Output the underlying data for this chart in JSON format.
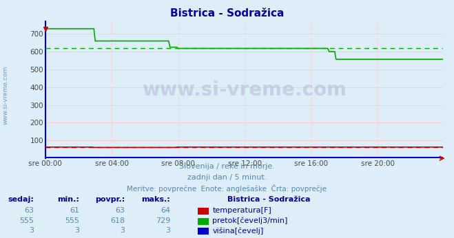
{
  "title": "Bistrica - Sodražica",
  "bg_color": "#ddeef8",
  "plot_bg_color": "#ddeef8",
  "fig_bg_color": "#ddeef8",
  "xlabel_ticks": [
    "sre 00:00",
    "sre 04:00",
    "sre 08:00",
    "sre 12:00",
    "sre 16:00",
    "sre 20:00"
  ],
  "xtick_positions": [
    0,
    48,
    96,
    144,
    192,
    240
  ],
  "ylabel_ticks": [
    100,
    200,
    300,
    400,
    500,
    600,
    700
  ],
  "ylim": [
    0,
    770
  ],
  "xlim": [
    0,
    287
  ],
  "total_points": 288,
  "subtitle1": "Slovenija / reke in morje.",
  "subtitle2": "zadnji dan / 5 minut.",
  "subtitle3": "Meritve: povprečne  Enote: anglešaške  Črta: povprečje",
  "watermark": "www.si-vreme.com",
  "legend_title": "Bistrica - Sodražica",
  "legend_items": [
    {
      "label": "temperatura[F]",
      "color": "#cc0000"
    },
    {
      "label": "pretok[čevelj3/min]",
      "color": "#00aa00"
    },
    {
      "label": "višina[čevelj]",
      "color": "#0000cc"
    }
  ],
  "table": {
    "headers": [
      "sedaj:",
      "min.:",
      "povpr.:",
      "maks.:"
    ],
    "rows": [
      [
        63,
        61,
        63,
        64
      ],
      [
        555,
        555,
        618,
        729
      ],
      [
        3,
        3,
        3,
        3
      ]
    ]
  },
  "temperatura": {
    "color": "#cc0000",
    "avg": 63,
    "data_segments": [
      {
        "x_start": 0,
        "x_end": 35,
        "y": 63
      },
      {
        "x_start": 35,
        "x_end": 95,
        "y": 61
      },
      {
        "x_start": 95,
        "x_end": 287,
        "y": 63
      }
    ]
  },
  "pretok": {
    "color": "#00aa00",
    "avg": 618,
    "data_segments": [
      {
        "x_start": 0,
        "x_end": 36,
        "y": 729
      },
      {
        "x_start": 36,
        "x_end": 90,
        "y": 660
      },
      {
        "x_start": 90,
        "x_end": 96,
        "y": 625
      },
      {
        "x_start": 96,
        "x_end": 205,
        "y": 618
      },
      {
        "x_start": 205,
        "x_end": 210,
        "y": 600
      },
      {
        "x_start": 210,
        "x_end": 287,
        "y": 557
      }
    ]
  },
  "visina": {
    "color": "#0000cc",
    "avg": 3,
    "value": 3
  },
  "grid_color": "#ffcccc",
  "spine_color": "#0000cc",
  "arrow_color": "#cc0000",
  "title_color": "#000099",
  "subtitle_color": "#5588aa",
  "table_header_color": "#000099",
  "table_value_color": "#5588aa",
  "watermark_color": "#aaaacc",
  "left_label": "www.si-vreme.com",
  "left_label_color": "#7799bb"
}
